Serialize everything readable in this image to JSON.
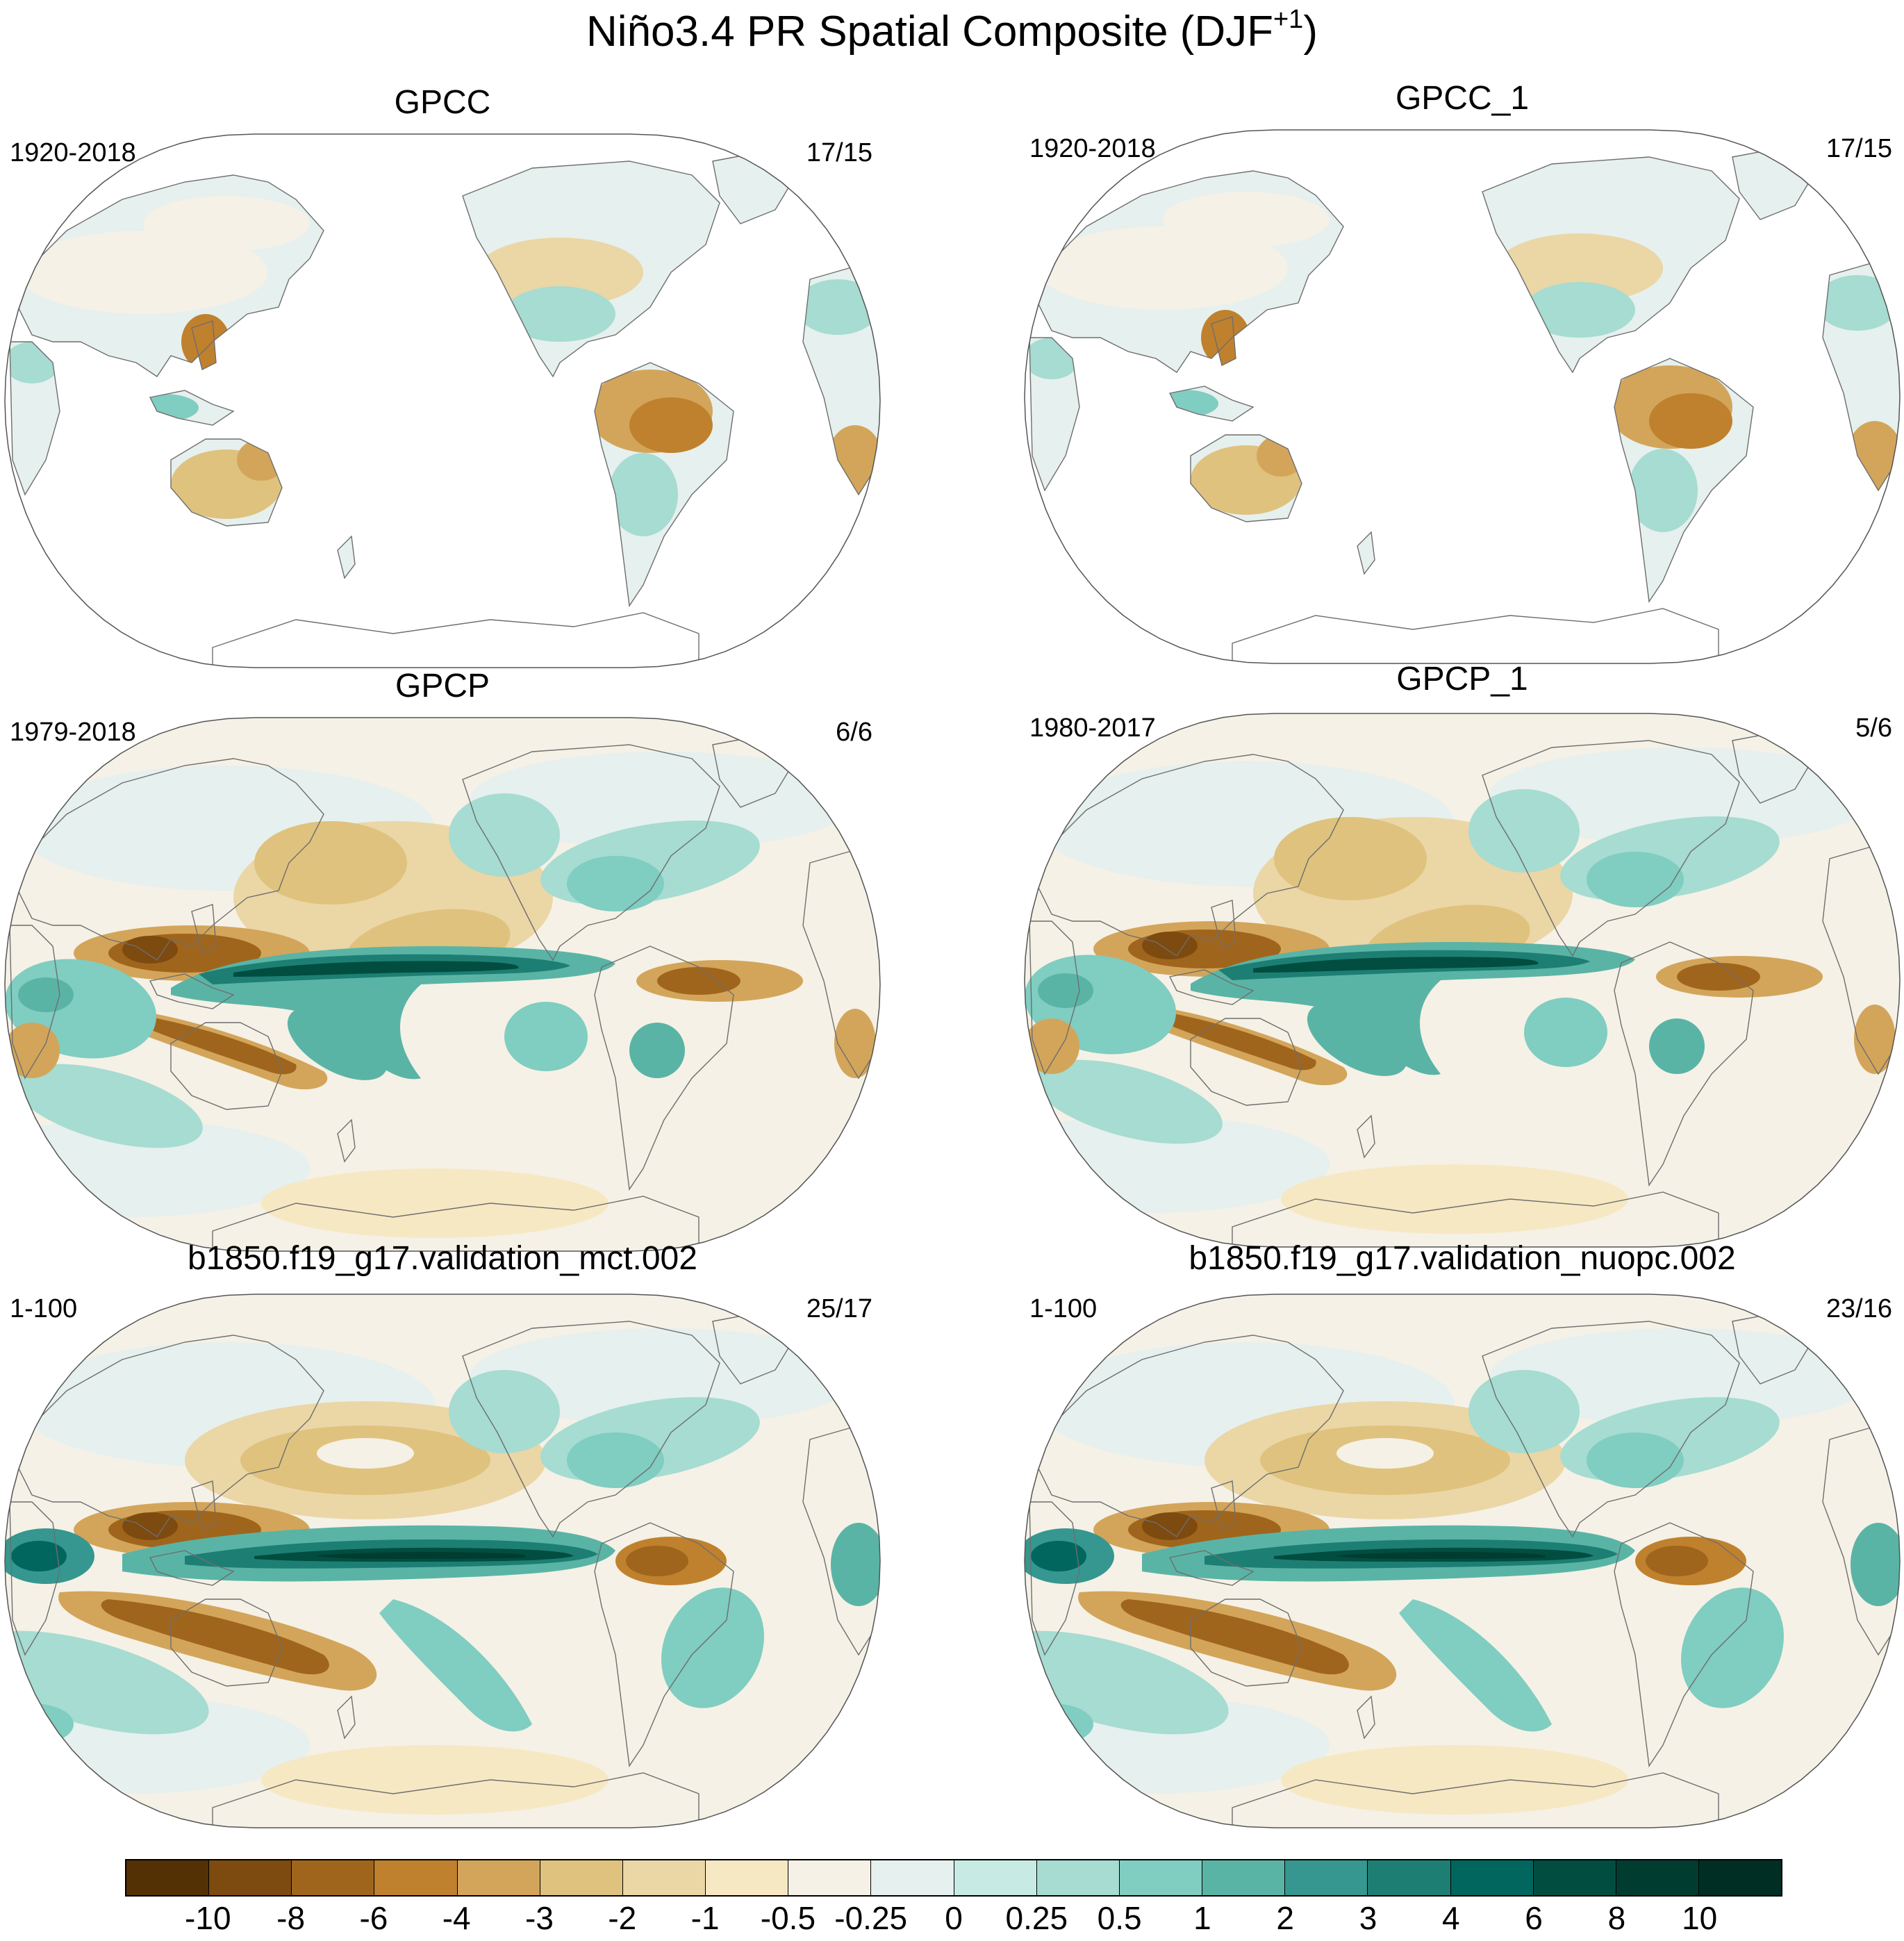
{
  "figure": {
    "title_main": "Niño3.4 PR Spatial Composite (DJF",
    "title_sup": "+1",
    "title_end": ")"
  },
  "panels": [
    {
      "title": "GPCC",
      "period": "1920-2018",
      "count": "17/15",
      "field": "land"
    },
    {
      "title": "GPCC_1",
      "period": "1920-2018",
      "count": "17/15",
      "field": "land"
    },
    {
      "title": "GPCP",
      "period": "1979-2018",
      "count": "6/6",
      "field": "obs"
    },
    {
      "title": "GPCP_1",
      "period": "1980-2017",
      "count": "5/6",
      "field": "obs"
    },
    {
      "title": "b1850.f19_g17.validation_mct.002",
      "period": "1-100",
      "count": "25/17",
      "field": "model"
    },
    {
      "title": "b1850.f19_g17.validation_nuopc.002",
      "period": "1-100",
      "count": "23/16",
      "field": "model"
    }
  ],
  "colorbar": {
    "labels": [
      "-10",
      "-8",
      "-6",
      "-4",
      "-3",
      "-2",
      "-1",
      "-0.5",
      "-0.25",
      "0",
      "0.25",
      "0.5",
      "1",
      "2",
      "3",
      "4",
      "6",
      "8",
      "10"
    ],
    "colors": [
      "#543005",
      "#7d4a0f",
      "#a0651c",
      "#bf812d",
      "#d3a55a",
      "#dfc27d",
      "#ebd6a6",
      "#f6e8c3",
      "#f5f1e6",
      "#e6f0ee",
      "#c7eae5",
      "#a6dcd1",
      "#80cdc1",
      "#5ab4a6",
      "#35978f",
      "#1d7f73",
      "#01665e",
      "#014d40",
      "#003c30"
    ]
  },
  "chart_data": {
    "type": "heatmap",
    "title": "Niño3.4 PR Spatial Composite (DJF+1)",
    "projection": "Robinson, Pacific-centered",
    "panels": [
      {
        "title": "GPCC",
        "period": "1920-2018",
        "count": "17/15",
        "coverage": "land only"
      },
      {
        "title": "GPCC_1",
        "period": "1920-2018",
        "count": "17/15",
        "coverage": "land only"
      },
      {
        "title": "GPCP",
        "period": "1979-2018",
        "count": "6/6",
        "coverage": "global"
      },
      {
        "title": "GPCP_1",
        "period": "1980-2017",
        "count": "5/6",
        "coverage": "global"
      },
      {
        "title": "b1850.f19_g17.validation_mct.002",
        "period": "1-100",
        "count": "25/17",
        "coverage": "global"
      },
      {
        "title": "b1850.f19_g17.validation_nuopc.002",
        "period": "1-100",
        "count": "23/16",
        "coverage": "global"
      }
    ],
    "contour_levels": [
      -10,
      -8,
      -6,
      -4,
      -3,
      -2,
      -1,
      -0.5,
      -0.25,
      0,
      0.25,
      0.5,
      1,
      2,
      3,
      4,
      6,
      8,
      10
    ]
  }
}
